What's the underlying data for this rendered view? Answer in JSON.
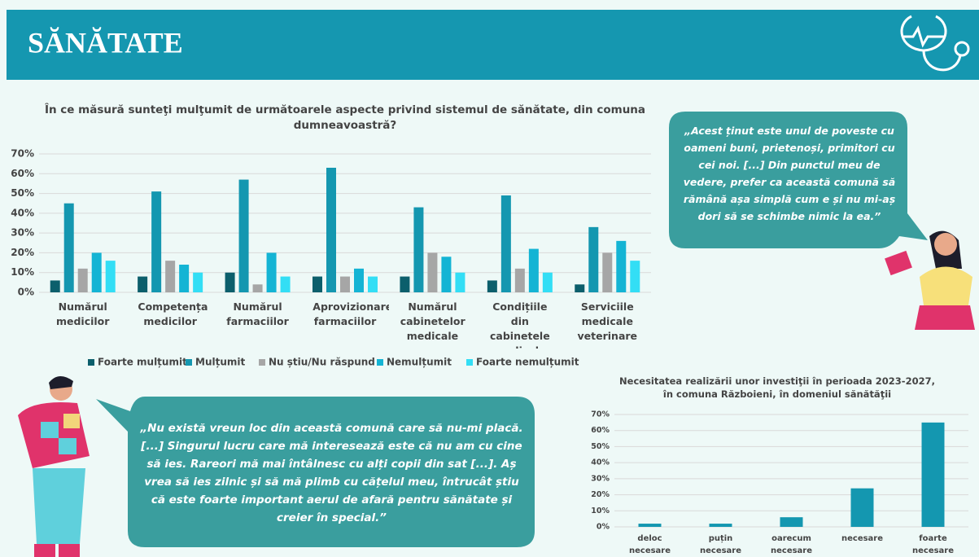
{
  "header": {
    "title": "SĂNĂTATE"
  },
  "quotes": [
    "„Acest ținut este unul de poveste cu oameni buni, prietenoși, primitori cu cei noi.  [...]  Din punctul meu de vedere, prefer ca această comună să rămână așa simplă cum e și nu mi-aș dori să se schimbe nimic la ea.”",
    "„Nu există vreun loc din această comună care să nu-mi placă. [...] Singurul lucru care mă interesează este că nu am cu cine să ies. Rareori mă mai întâlnesc cu alți copii din sat  [...]. Aș vrea să ies zilnic și să mă plimb cu cățelul meu, întrucât știu că este foarte important aerul de afară pentru sănătate și creier în special.”"
  ],
  "chart_data": [
    {
      "type": "bar",
      "title": "În ce măsură sunteţi mulţumit de următoarele aspecte privind sistemul de sănătate, din comuna dumneavoastră?",
      "categories": [
        "Numărul medicilor",
        "Competența medicilor",
        "Numărul farmaciilor",
        "Aprovizionarea farmaciilor",
        "Numărul cabinetelor medicale",
        "Condițiile din cabinetele medicale",
        "Serviciile medicale veterinare"
      ],
      "series": [
        {
          "name": "Foarte mulțumit",
          "color": "#0c5f6c",
          "values": [
            6,
            8,
            10,
            8,
            8,
            6,
            4
          ]
        },
        {
          "name": "Mulțumit",
          "color": "#1497b0",
          "values": [
            45,
            51,
            57,
            63,
            43,
            49,
            33
          ]
        },
        {
          "name": "Nu știu/Nu răspund",
          "color": "#a6a6a6",
          "values": [
            12,
            16,
            4,
            8,
            20,
            12,
            20
          ]
        },
        {
          "name": "Nemulțumit",
          "color": "#14b4d4",
          "values": [
            20,
            14,
            20,
            12,
            18,
            22,
            26
          ]
        },
        {
          "name": "Foarte nemulțumit",
          "color": "#33def5",
          "values": [
            16,
            10,
            8,
            8,
            10,
            10,
            16
          ]
        }
      ],
      "ylim": [
        0,
        70
      ],
      "yticks": [
        {
          "value": 0,
          "label": "0%"
        },
        {
          "value": 10,
          "label": "10%"
        },
        {
          "value": 20,
          "label": "20%"
        },
        {
          "value": 30,
          "label": "30%"
        },
        {
          "value": 40,
          "label": "40%"
        },
        {
          "value": 50,
          "label": "50%"
        },
        {
          "value": 60,
          "label": "60%"
        },
        {
          "value": 70,
          "label": "70%"
        }
      ],
      "grid": true,
      "legend": "bottom"
    },
    {
      "type": "bar",
      "title": "Necesitatea realizării unor investiţii în perioada 2023-2027, în comuna Războieni, în domeniul sănătăţii",
      "categories": [
        "deloc necesare",
        "puțin necesare",
        "oarecum necesare",
        "necesare",
        "foarte necesare"
      ],
      "values": [
        2,
        2,
        6,
        24,
        65
      ],
      "color": "#1497b0",
      "ylim": [
        0,
        70
      ],
      "yticks": [
        {
          "value": 0,
          "label": "0%"
        },
        {
          "value": 10,
          "label": "10%"
        },
        {
          "value": 20,
          "label": "20%"
        },
        {
          "value": 30,
          "label": "30%"
        },
        {
          "value": 40,
          "label": "40%"
        },
        {
          "value": 50,
          "label": "50%"
        },
        {
          "value": 60,
          "label": "60%"
        },
        {
          "value": 70,
          "label": "70%"
        }
      ],
      "grid": true
    }
  ]
}
